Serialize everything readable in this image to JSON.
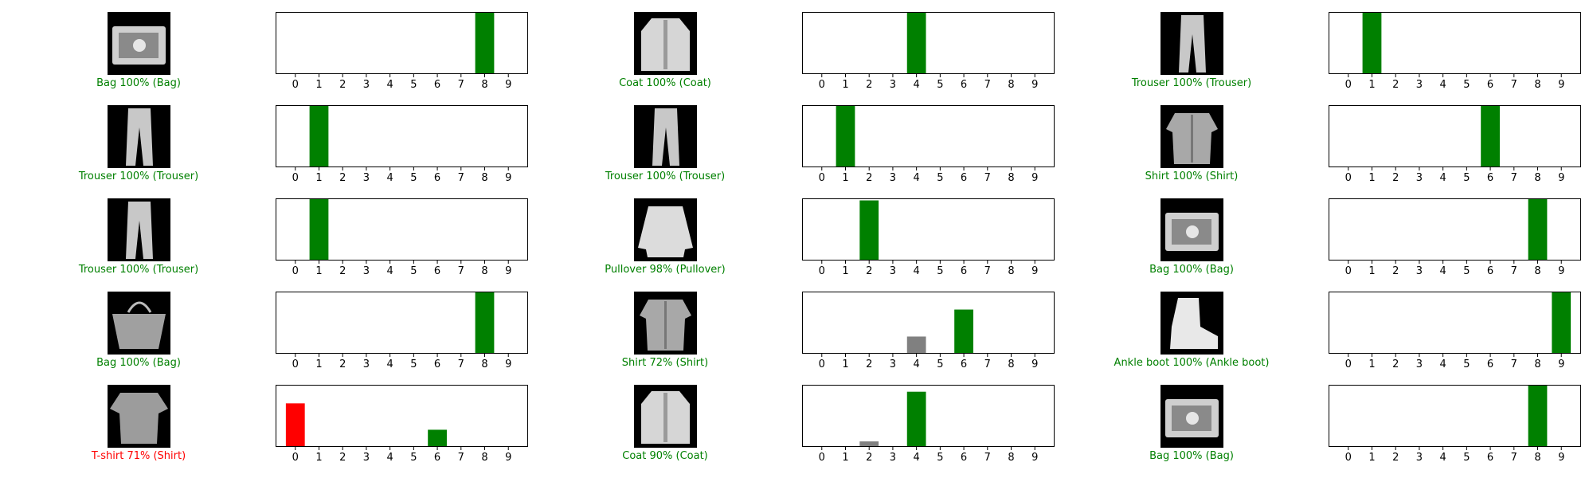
{
  "colors": {
    "correct": "#008000",
    "wrong": "#ff0000",
    "other": "#808080",
    "axis": "#000000"
  },
  "layout_note": "",
  "chart_data": [
    {
      "type": "bar",
      "categories": [
        "0",
        "1",
        "2",
        "3",
        "4",
        "5",
        "6",
        "7",
        "8",
        "9"
      ],
      "values": [
        0,
        0,
        0,
        0,
        0,
        0,
        0,
        0,
        100,
        0
      ],
      "predicted": 8,
      "true_label": 8,
      "caption": "Bag 100% (Bag)",
      "image": "bag-image",
      "ylim": [
        0,
        100
      ]
    },
    {
      "type": "bar",
      "categories": [
        "0",
        "1",
        "2",
        "3",
        "4",
        "5",
        "6",
        "7",
        "8",
        "9"
      ],
      "values": [
        0,
        0,
        0,
        0,
        100,
        0,
        0,
        0,
        0,
        0
      ],
      "predicted": 4,
      "true_label": 4,
      "caption": "Coat 100% (Coat)",
      "image": "coat-image",
      "ylim": [
        0,
        100
      ]
    },
    {
      "type": "bar",
      "categories": [
        "0",
        "1",
        "2",
        "3",
        "4",
        "5",
        "6",
        "7",
        "8",
        "9"
      ],
      "values": [
        0,
        100,
        0,
        0,
        0,
        0,
        0,
        0,
        0,
        0
      ],
      "predicted": 1,
      "true_label": 1,
      "caption": "Trouser 100% (Trouser)",
      "image": "trouser-image",
      "ylim": [
        0,
        100
      ]
    },
    {
      "type": "bar",
      "categories": [
        "0",
        "1",
        "2",
        "3",
        "4",
        "5",
        "6",
        "7",
        "8",
        "9"
      ],
      "values": [
        0,
        100,
        0,
        0,
        0,
        0,
        0,
        0,
        0,
        0
      ],
      "predicted": 1,
      "true_label": 1,
      "caption": "Trouser 100% (Trouser)",
      "image": "trouser-image",
      "ylim": [
        0,
        100
      ]
    },
    {
      "type": "bar",
      "categories": [
        "0",
        "1",
        "2",
        "3",
        "4",
        "5",
        "6",
        "7",
        "8",
        "9"
      ],
      "values": [
        0,
        100,
        0,
        0,
        0,
        0,
        0,
        0,
        0,
        0
      ],
      "predicted": 1,
      "true_label": 1,
      "caption": "Trouser 100% (Trouser)",
      "image": "trouser-image",
      "ylim": [
        0,
        100
      ]
    },
    {
      "type": "bar",
      "categories": [
        "0",
        "1",
        "2",
        "3",
        "4",
        "5",
        "6",
        "7",
        "8",
        "9"
      ],
      "values": [
        0,
        0,
        0,
        0,
        0,
        0,
        100,
        0,
        0,
        0
      ],
      "predicted": 6,
      "true_label": 6,
      "caption": "Shirt 100% (Shirt)",
      "image": "shirt-image",
      "ylim": [
        0,
        100
      ]
    },
    {
      "type": "bar",
      "categories": [
        "0",
        "1",
        "2",
        "3",
        "4",
        "5",
        "6",
        "7",
        "8",
        "9"
      ],
      "values": [
        0,
        100,
        0,
        0,
        0,
        0,
        0,
        0,
        0,
        0
      ],
      "predicted": 1,
      "true_label": 1,
      "caption": "Trouser 100% (Trouser)",
      "image": "trouser-image",
      "ylim": [
        0,
        100
      ]
    },
    {
      "type": "bar",
      "categories": [
        "0",
        "1",
        "2",
        "3",
        "4",
        "5",
        "6",
        "7",
        "8",
        "9"
      ],
      "values": [
        0,
        0,
        98,
        0,
        0,
        0,
        0,
        0,
        0,
        0
      ],
      "predicted": 2,
      "true_label": 2,
      "caption": "Pullover 98% (Pullover)",
      "image": "pullover-image",
      "ylim": [
        0,
        100
      ]
    },
    {
      "type": "bar",
      "categories": [
        "0",
        "1",
        "2",
        "3",
        "4",
        "5",
        "6",
        "7",
        "8",
        "9"
      ],
      "values": [
        0,
        0,
        0,
        0,
        0,
        0,
        0,
        0,
        100,
        0
      ],
      "predicted": 8,
      "true_label": 8,
      "caption": "Bag 100% (Bag)",
      "image": "bag-image",
      "ylim": [
        0,
        100
      ]
    },
    {
      "type": "bar",
      "categories": [
        "0",
        "1",
        "2",
        "3",
        "4",
        "5",
        "6",
        "7",
        "8",
        "9"
      ],
      "values": [
        0,
        0,
        0,
        0,
        0,
        0,
        0,
        0,
        100,
        0
      ],
      "predicted": 8,
      "true_label": 8,
      "caption": "Bag 100% (Bag)",
      "image": "handbag-image",
      "ylim": [
        0,
        100
      ]
    },
    {
      "type": "bar",
      "categories": [
        "0",
        "1",
        "2",
        "3",
        "4",
        "5",
        "6",
        "7",
        "8",
        "9"
      ],
      "values": [
        0,
        0,
        0,
        0,
        28,
        0,
        72,
        0,
        0,
        0
      ],
      "predicted": 6,
      "true_label": 6,
      "caption": "Shirt 72% (Shirt)",
      "image": "shirt-image",
      "ylim": [
        0,
        100
      ]
    },
    {
      "type": "bar",
      "categories": [
        "0",
        "1",
        "2",
        "3",
        "4",
        "5",
        "6",
        "7",
        "8",
        "9"
      ],
      "values": [
        0,
        0,
        0,
        0,
        0,
        0,
        0,
        0,
        0,
        100
      ],
      "predicted": 9,
      "true_label": 9,
      "caption": "Ankle boot 100% (Ankle boot)",
      "image": "boot-image",
      "ylim": [
        0,
        100
      ]
    },
    {
      "type": "bar",
      "categories": [
        "0",
        "1",
        "2",
        "3",
        "4",
        "5",
        "6",
        "7",
        "8",
        "9"
      ],
      "values": [
        71,
        0,
        0,
        0,
        0,
        0,
        28,
        0,
        0,
        0
      ],
      "predicted": 0,
      "true_label": 6,
      "caption": "T-shirt 71% (Shirt)",
      "image": "tshirt-image",
      "ylim": [
        0,
        100
      ]
    },
    {
      "type": "bar",
      "categories": [
        "0",
        "1",
        "2",
        "3",
        "4",
        "5",
        "6",
        "7",
        "8",
        "9"
      ],
      "values": [
        0,
        0,
        9,
        0,
        90,
        0,
        0,
        0,
        0,
        0
      ],
      "predicted": 4,
      "true_label": 4,
      "caption": "Coat 90% (Coat)",
      "image": "coat-image",
      "ylim": [
        0,
        100
      ]
    },
    {
      "type": "bar",
      "categories": [
        "0",
        "1",
        "2",
        "3",
        "4",
        "5",
        "6",
        "7",
        "8",
        "9"
      ],
      "values": [
        0,
        0,
        0,
        0,
        0,
        0,
        0,
        0,
        100,
        0
      ],
      "predicted": 8,
      "true_label": 8,
      "caption": "Bag 100% (Bag)",
      "image": "bag-image",
      "ylim": [
        0,
        100
      ]
    }
  ]
}
